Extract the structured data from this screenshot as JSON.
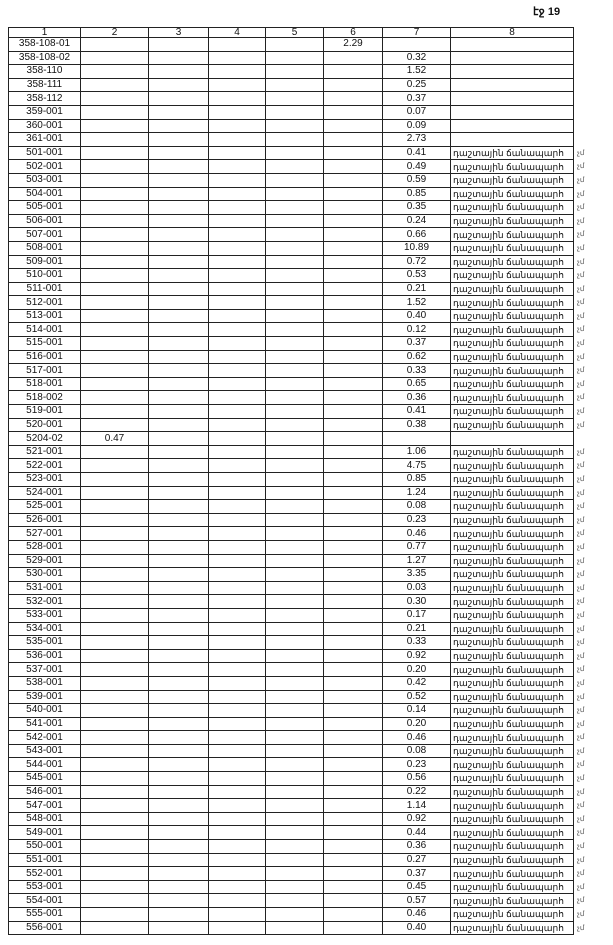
{
  "page_label": "էջ 19",
  "columns": [
    "1",
    "2",
    "3",
    "4",
    "5",
    "6",
    "7",
    "8"
  ],
  "margin_note": "չմ",
  "rows": [
    [
      "358-108-01",
      "",
      "",
      "",
      "",
      "2.29",
      "",
      ""
    ],
    [
      "358-108-02",
      "",
      "",
      "",
      "",
      "",
      "0.32",
      ""
    ],
    [
      "358-110",
      "",
      "",
      "",
      "",
      "",
      "1.52",
      ""
    ],
    [
      "358-111",
      "",
      "",
      "",
      "",
      "",
      "0.25",
      ""
    ],
    [
      "358-112",
      "",
      "",
      "",
      "",
      "",
      "0.37",
      ""
    ],
    [
      "359-001",
      "",
      "",
      "",
      "",
      "",
      "0.07",
      ""
    ],
    [
      "360-001",
      "",
      "",
      "",
      "",
      "",
      "0.09",
      ""
    ],
    [
      "361-001",
      "",
      "",
      "",
      "",
      "",
      "2.73",
      ""
    ],
    [
      "501-001",
      "",
      "",
      "",
      "",
      "",
      "0.41",
      "դաշտային ճանապարհ"
    ],
    [
      "502-001",
      "",
      "",
      "",
      "",
      "",
      "0.49",
      "դաշտային ճանապարհ"
    ],
    [
      "503-001",
      "",
      "",
      "",
      "",
      "",
      "0.59",
      "դաշտային ճանապարհ"
    ],
    [
      "504-001",
      "",
      "",
      "",
      "",
      "",
      "0.85",
      "դաշտային ճանապարհ"
    ],
    [
      "505-001",
      "",
      "",
      "",
      "",
      "",
      "0.35",
      "դաշտային ճանապարհ"
    ],
    [
      "506-001",
      "",
      "",
      "",
      "",
      "",
      "0.24",
      "դաշտային ճանապարհ"
    ],
    [
      "507-001",
      "",
      "",
      "",
      "",
      "",
      "0.66",
      "դաշտային ճանապարհ"
    ],
    [
      "508-001",
      "",
      "",
      "",
      "",
      "",
      "10.89",
      "դաշտային ճանապարհ"
    ],
    [
      "509-001",
      "",
      "",
      "",
      "",
      "",
      "0.72",
      "դաշտային ճանապարհ"
    ],
    [
      "510-001",
      "",
      "",
      "",
      "",
      "",
      "0.53",
      "դաշտային ճանապարհ"
    ],
    [
      "511-001",
      "",
      "",
      "",
      "",
      "",
      "0.21",
      "դաշտային ճանապարհ"
    ],
    [
      "512-001",
      "",
      "",
      "",
      "",
      "",
      "1.52",
      "դաշտային ճանապարհ"
    ],
    [
      "513-001",
      "",
      "",
      "",
      "",
      "",
      "0.40",
      "դաշտային ճանապարհ"
    ],
    [
      "514-001",
      "",
      "",
      "",
      "",
      "",
      "0.12",
      "դաշտային ճանապարհ"
    ],
    [
      "515-001",
      "",
      "",
      "",
      "",
      "",
      "0.37",
      "դաշտային ճանապարհ"
    ],
    [
      "516-001",
      "",
      "",
      "",
      "",
      "",
      "0.62",
      "դաշտային ճանապարհ"
    ],
    [
      "517-001",
      "",
      "",
      "",
      "",
      "",
      "0.33",
      "դաշտային ճանապարհ"
    ],
    [
      "518-001",
      "",
      "",
      "",
      "",
      "",
      "0.65",
      "դաշտային ճանապարհ"
    ],
    [
      "518-002",
      "",
      "",
      "",
      "",
      "",
      "0.36",
      "դաշտային ճանապարհ"
    ],
    [
      "519-001",
      "",
      "",
      "",
      "",
      "",
      "0.41",
      "դաշտային ճանապարհ"
    ],
    [
      "520-001",
      "",
      "",
      "",
      "",
      "",
      "0.38",
      "դաշտային ճանապարհ"
    ],
    [
      "5204-02",
      "0.47",
      "",
      "",
      "",
      "",
      "",
      ""
    ],
    [
      "521-001",
      "",
      "",
      "",
      "",
      "",
      "1.06",
      "դաշտային ճանապարհ"
    ],
    [
      "522-001",
      "",
      "",
      "",
      "",
      "",
      "4.75",
      "դաշտային ճանապարհ"
    ],
    [
      "523-001",
      "",
      "",
      "",
      "",
      "",
      "0.85",
      "դաշտային ճանապարհ"
    ],
    [
      "524-001",
      "",
      "",
      "",
      "",
      "",
      "1.24",
      "դաշտային ճանապարհ"
    ],
    [
      "525-001",
      "",
      "",
      "",
      "",
      "",
      "0.08",
      "դաշտային ճանապարհ"
    ],
    [
      "526-001",
      "",
      "",
      "",
      "",
      "",
      "0.23",
      "դաշտային ճանապարհ"
    ],
    [
      "527-001",
      "",
      "",
      "",
      "",
      "",
      "0.46",
      "դաշտային ճանապարհ"
    ],
    [
      "528-001",
      "",
      "",
      "",
      "",
      "",
      "0.77",
      "դաշտային ճանապարհ"
    ],
    [
      "529-001",
      "",
      "",
      "",
      "",
      "",
      "1.27",
      "դաշտային ճանապարհ"
    ],
    [
      "530-001",
      "",
      "",
      "",
      "",
      "",
      "3.35",
      "դաշտային ճանապարհ"
    ],
    [
      "531-001",
      "",
      "",
      "",
      "",
      "",
      "0.03",
      "դաշտային ճանապարհ"
    ],
    [
      "532-001",
      "",
      "",
      "",
      "",
      "",
      "0.30",
      "դաշտային ճանապարհ"
    ],
    [
      "533-001",
      "",
      "",
      "",
      "",
      "",
      "0.17",
      "դաշտային ճանապարհ"
    ],
    [
      "534-001",
      "",
      "",
      "",
      "",
      "",
      "0.21",
      "դաշտային ճանապարհ"
    ],
    [
      "535-001",
      "",
      "",
      "",
      "",
      "",
      "0.33",
      "դաշտային ճանապարհ"
    ],
    [
      "536-001",
      "",
      "",
      "",
      "",
      "",
      "0.92",
      "դաշտային ճանապարհ"
    ],
    [
      "537-001",
      "",
      "",
      "",
      "",
      "",
      "0.20",
      "դաշտային ճանապարհ"
    ],
    [
      "538-001",
      "",
      "",
      "",
      "",
      "",
      "0.42",
      "դաշտային ճանապարհ"
    ],
    [
      "539-001",
      "",
      "",
      "",
      "",
      "",
      "0.52",
      "դաշտային ճանապարհ"
    ],
    [
      "540-001",
      "",
      "",
      "",
      "",
      "",
      "0.14",
      "դաշտային ճանապարհ"
    ],
    [
      "541-001",
      "",
      "",
      "",
      "",
      "",
      "0.20",
      "դաշտային ճանապարհ"
    ],
    [
      "542-001",
      "",
      "",
      "",
      "",
      "",
      "0.46",
      "դաշտային ճանապարհ"
    ],
    [
      "543-001",
      "",
      "",
      "",
      "",
      "",
      "0.08",
      "դաշտային ճանապարհ"
    ],
    [
      "544-001",
      "",
      "",
      "",
      "",
      "",
      "0.23",
      "դաշտային ճանապարհ"
    ],
    [
      "545-001",
      "",
      "",
      "",
      "",
      "",
      "0.56",
      "դաշտային ճանապարհ"
    ],
    [
      "546-001",
      "",
      "",
      "",
      "",
      "",
      "0.22",
      "դաշտային ճանապարհ"
    ],
    [
      "547-001",
      "",
      "",
      "",
      "",
      "",
      "1.14",
      "դաշտային ճանապարհ"
    ],
    [
      "548-001",
      "",
      "",
      "",
      "",
      "",
      "0.92",
      "դաշտային ճանապարհ"
    ],
    [
      "549-001",
      "",
      "",
      "",
      "",
      "",
      "0.44",
      "դաշտային ճանապարհ"
    ],
    [
      "550-001",
      "",
      "",
      "",
      "",
      "",
      "0.36",
      "դաշտային ճանապարհ"
    ],
    [
      "551-001",
      "",
      "",
      "",
      "",
      "",
      "0.27",
      "դաշտային ճանապարհ"
    ],
    [
      "552-001",
      "",
      "",
      "",
      "",
      "",
      "0.37",
      "դաշտային ճանապարհ"
    ],
    [
      "553-001",
      "",
      "",
      "",
      "",
      "",
      "0.45",
      "դաշտային ճանապարհ"
    ],
    [
      "554-001",
      "",
      "",
      "",
      "",
      "",
      "0.57",
      "դաշտային ճանապարհ"
    ],
    [
      "555-001",
      "",
      "",
      "",
      "",
      "",
      "0.46",
      "դաշտային ճանապարհ"
    ],
    [
      "556-001",
      "",
      "",
      "",
      "",
      "",
      "0.40",
      "դաշտային ճանապարհ"
    ]
  ]
}
